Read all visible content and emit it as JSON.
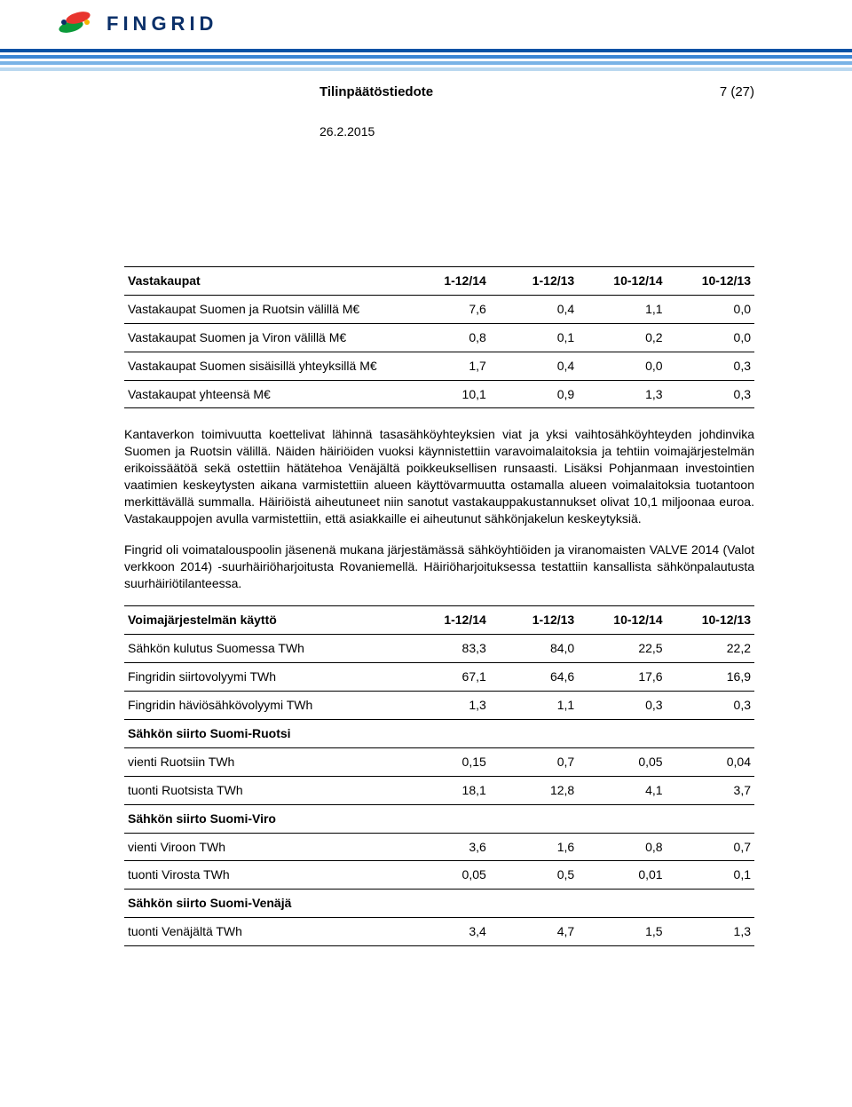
{
  "brand": {
    "name": "FINGRID",
    "logo_text_color": "#0b3069",
    "stripe_colors": [
      "#0552a5",
      "#3a86d4",
      "#79b3e6",
      "#bad8f0"
    ]
  },
  "doc_header": {
    "title": "Tilinpäätöstiedote",
    "page": "7 (27)",
    "date": "26.2.2015"
  },
  "table1": {
    "header": [
      "Vastakaupat",
      "1-12/14",
      "1-12/13",
      "10-12/14",
      "10-12/13"
    ],
    "rows": [
      {
        "label": "Vastakaupat Suomen ja Ruotsin välillä M€",
        "vals": [
          "7,6",
          "0,4",
          "1,1",
          "0,0"
        ]
      },
      {
        "label": "Vastakaupat Suomen ja Viron välillä M€",
        "vals": [
          "0,8",
          "0,1",
          "0,2",
          "0,0"
        ]
      },
      {
        "label": "Vastakaupat Suomen sisäisillä yhteyksillä M€",
        "vals": [
          "1,7",
          "0,4",
          "0,0",
          "0,3"
        ]
      },
      {
        "label": "Vastakaupat yhteensä M€",
        "vals": [
          "10,1",
          "0,9",
          "1,3",
          "0,3"
        ]
      }
    ]
  },
  "paragraphs": [
    "Kantaverkon toimivuutta koettelivat lähinnä tasasähköyhteyksien viat ja yksi vaihtosähköyhteyden johdinvika Suomen ja Ruotsin välillä. Näiden häiriöiden vuoksi käynnistettiin varavoimalaitoksia ja tehtiin voimajärjestelmän erikoissäätöä sekä ostettiin hätätehoa Venäjältä poikkeuksellisen runsaasti. Lisäksi Pohjanmaan investointien vaatimien keskeytysten aikana varmistettiin alueen käyttövarmuutta ostamalla alueen voimalaitoksia tuotantoon merkittävällä summalla. Häiriöistä aiheutuneet niin sanotut vastakauppakustannukset olivat 10,1 miljoonaa euroa. Vastakauppojen avulla varmistettiin, että asiakkaille ei aiheutunut sähkönjakelun keskeytyksiä.",
    "Fingrid oli voimatalouspoolin jäsenenä mukana järjestämässä sähköyhtiöiden ja viranomaisten VALVE 2014 (Valot verkkoon 2014) -suurhäiriöharjoitusta Rovaniemellä. Häiriöharjoituksessa testattiin kansallista sähkönpalautusta suurhäiriötilanteessa."
  ],
  "table2": {
    "header": [
      "Voimajärjestelmän käyttö",
      "1-12/14",
      "1-12/13",
      "10-12/14",
      "10-12/13"
    ],
    "rows": [
      {
        "label": "Sähkön kulutus Suomessa TWh",
        "vals": [
          "83,3",
          "84,0",
          "22,5",
          "22,2"
        ],
        "section": false
      },
      {
        "label": "Fingridin siirtovolyymi TWh",
        "vals": [
          "67,1",
          "64,6",
          "17,6",
          "16,9"
        ],
        "section": false
      },
      {
        "label": "Fingridin häviösähkövolyymi TWh",
        "vals": [
          "1,3",
          "1,1",
          "0,3",
          "0,3"
        ],
        "section": false
      },
      {
        "label": "Sähkön siirto Suomi-Ruotsi",
        "vals": [
          "",
          "",
          "",
          ""
        ],
        "section": true
      },
      {
        "label": "vienti Ruotsiin TWh",
        "vals": [
          "0,15",
          "0,7",
          "0,05",
          "0,04"
        ],
        "section": false
      },
      {
        "label": "tuonti Ruotsista TWh",
        "vals": [
          "18,1",
          "12,8",
          "4,1",
          "3,7"
        ],
        "section": false
      },
      {
        "label": "Sähkön siirto Suomi-Viro",
        "vals": [
          "",
          "",
          "",
          ""
        ],
        "section": true
      },
      {
        "label": "vienti Viroon TWh",
        "vals": [
          "3,6",
          "1,6",
          "0,8",
          "0,7"
        ],
        "section": false
      },
      {
        "label": "tuonti Virosta TWh",
        "vals": [
          "0,05",
          "0,5",
          "0,01",
          "0,1"
        ],
        "section": false
      },
      {
        "label": "Sähkön siirto Suomi-Venäjä",
        "vals": [
          "",
          "",
          "",
          ""
        ],
        "section": true
      },
      {
        "label": "tuonti Venäjältä TWh",
        "vals": [
          "3,4",
          "4,7",
          "1,5",
          "1,3"
        ],
        "section": false
      }
    ]
  },
  "colors": {
    "text": "#000000",
    "border": "#000000",
    "background": "#ffffff"
  },
  "fonts": {
    "body_family": "Arial",
    "body_size_pt": 11,
    "header_size_pt": 11,
    "logo_size_pt": 17
  }
}
